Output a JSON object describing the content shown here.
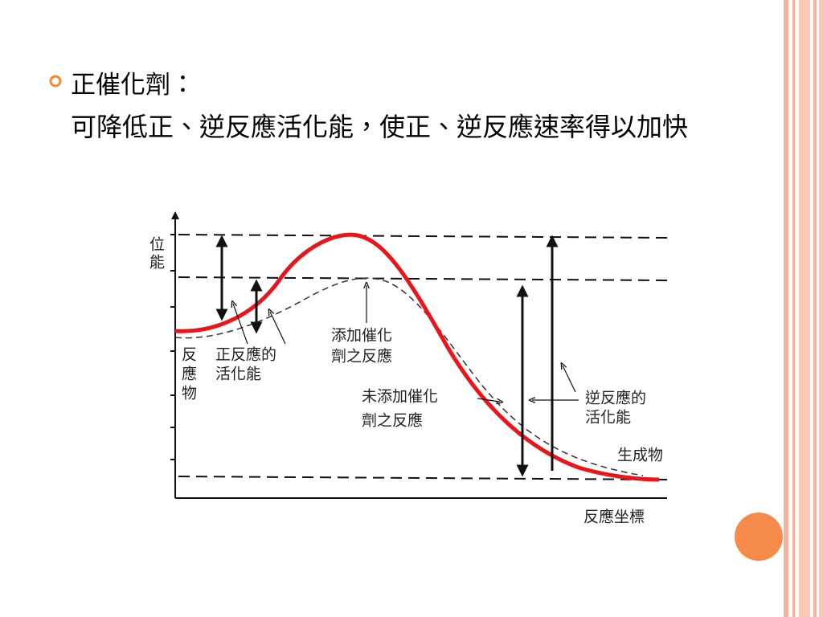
{
  "slide": {
    "bullet_title": "正催化劑：",
    "body": "可降低正、逆反應活化能，使正、逆反應速率得以加快",
    "diagram": {
      "y_axis_label": [
        "位",
        "能"
      ],
      "x_axis_label": "反應坐標",
      "reactant": [
        "反",
        "應",
        "物"
      ],
      "forward_ea": [
        "正反應的",
        "活化能"
      ],
      "with_catalyst": [
        "添加催化",
        "劑之反應"
      ],
      "without_catalyst": [
        "未添加催化",
        "劑之反應"
      ],
      "reverse_ea": [
        "逆反應的",
        "活化能"
      ],
      "product": "生成物"
    }
  }
}
